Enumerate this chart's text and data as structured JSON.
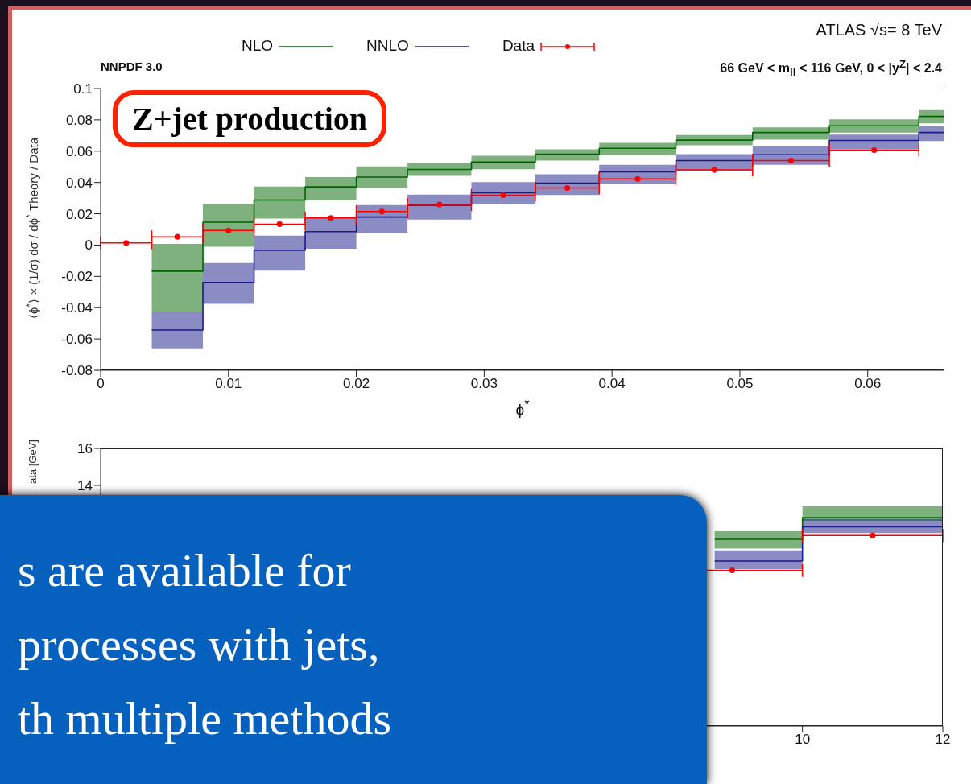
{
  "chart_data": [
    {
      "type": "step",
      "xlabel": "ϕ$^{*}$",
      "ylabel": "⟨ϕ$^{*}$⟩ × (1/σ) dσ / dϕ$^{*}$   Theory / Data",
      "legend": "top",
      "annotations": [
        "Z+jet production",
        "NNPDF 3.0",
        "ATLAS  √s= 8 TeV",
        "66 GeV < m$_{ll}$ < 116 GeV,  0 < |y$^{Z}$| < 2.4"
      ],
      "xlim": [
        0,
        0.066
      ],
      "xticks": [
        0,
        0.01,
        0.02,
        0.03,
        0.04,
        0.05,
        0.06
      ],
      "ylim": [
        -0.08,
        0.1
      ],
      "yticks": [
        -0.08,
        -0.06,
        -0.04,
        -0.02,
        0,
        0.02,
        0.04,
        0.06,
        0.08,
        0.1
      ],
      "series": [
        {
          "name": "NLO",
          "type": "step",
          "color": "#006400",
          "x": [
            0.004,
            0.008,
            0.012,
            0.016,
            0.02,
            0.024,
            0.029,
            0.034,
            0.039,
            0.045,
            0.051,
            0.057,
            0.064,
            0.066
          ],
          "values": [
            -0.0167,
            0.0146,
            0.0288,
            0.0372,
            0.0434,
            0.0483,
            0.053,
            0.0581,
            0.0618,
            0.067,
            0.0719,
            0.0762,
            0.0822,
            0.0822
          ],
          "lower": [
            -0.0424,
            -0.001,
            0.0169,
            0.0286,
            0.0368,
            0.0442,
            0.0485,
            0.054,
            0.0575,
            0.0637,
            0.0674,
            0.0719,
            0.0777,
            0.0777
          ],
          "upper": [
            0.0008,
            0.0261,
            0.0374,
            0.0434,
            0.0502,
            0.0523,
            0.0571,
            0.0612,
            0.0653,
            0.0703,
            0.0752,
            0.0803,
            0.0863,
            0.0863
          ]
        },
        {
          "name": "NNLO",
          "type": "step",
          "color": "#1a1a8c",
          "x": [
            0.004,
            0.008,
            0.012,
            0.016,
            0.02,
            0.024,
            0.029,
            0.034,
            0.039,
            0.045,
            0.051,
            0.057,
            0.064,
            0.066
          ],
          "values": [
            -0.0543,
            -0.0239,
            -0.0033,
            0.0086,
            0.0179,
            0.0255,
            0.0334,
            0.0396,
            0.0468,
            0.054,
            0.0577,
            0.0668,
            0.0719,
            0.0719
          ],
          "lower": [
            -0.066,
            -0.0376,
            -0.0163,
            -0.0023,
            0.008,
            0.0163,
            0.0262,
            0.032,
            0.039,
            0.0472,
            0.0513,
            0.0612,
            0.0664,
            0.0664
          ],
          "upper": [
            -0.0424,
            -0.0115,
            0.006,
            0.0175,
            0.0255,
            0.0323,
            0.0402,
            0.0452,
            0.0513,
            0.0581,
            0.0633,
            0.0705,
            0.076,
            0.076
          ]
        },
        {
          "name": "Data",
          "type": "scatter",
          "color": "#ff0000",
          "marker": "circle",
          "x": [
            0.002,
            0.006,
            0.01,
            0.014,
            0.018,
            0.022,
            0.0265,
            0.0315,
            0.0365,
            0.042,
            0.048,
            0.054,
            0.0605
          ],
          "values": [
            0.0014,
            0.0053,
            0.0093,
            0.0134,
            0.0173,
            0.0214,
            0.0259,
            0.0318,
            0.0365,
            0.0423,
            0.048,
            0.054,
            0.0606
          ],
          "xerrors": [
            0.002,
            0.002,
            0.002,
            0.002,
            0.002,
            0.002,
            0.0025,
            0.0025,
            0.0025,
            0.003,
            0.003,
            0.003,
            0.0035
          ]
        }
      ]
    },
    {
      "type": "step",
      "ylabel": "ata  [GeV]",
      "annotations": [
        "s are available for",
        "processes with jets,",
        "th multiple methods"
      ],
      "xlim": [
        0,
        12
      ],
      "xticks": [
        10,
        12
      ],
      "ylim": [
        1,
        16
      ],
      "yticks": [
        14,
        16
      ],
      "series": [
        {
          "type": "step",
          "color": "#006400",
          "x": [
            8.75,
            10,
            12
          ],
          "values": [
            11.09,
            12.26,
            12.26
          ],
          "lower": [
            10.59,
            12.09,
            12.09
          ],
          "upper": [
            11.52,
            12.87,
            12.87
          ]
        },
        {
          "type": "step",
          "color": "#1a1a8c",
          "x": [
            8.75,
            10,
            12
          ],
          "values": [
            9.91,
            11.76,
            11.76
          ],
          "lower": [
            9.48,
            11.42,
            11.42
          ],
          "upper": [
            10.49,
            12.19,
            12.19
          ]
        },
        {
          "type": "scatter",
          "color": "#ff0000",
          "marker": "circle",
          "x": [
            9,
            11
          ],
          "values": [
            9.41,
            11.29
          ],
          "xerrors": [
            1,
            1
          ]
        }
      ]
    }
  ]
}
